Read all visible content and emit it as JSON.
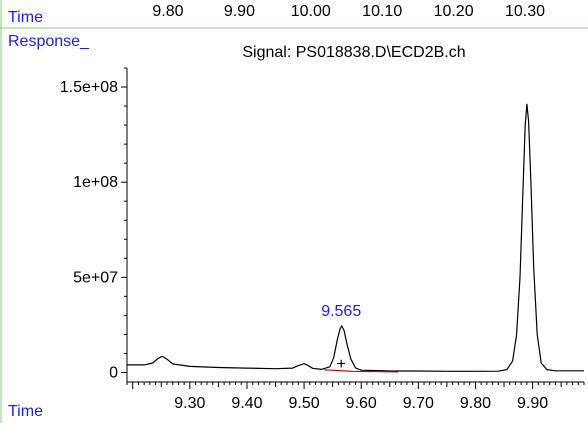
{
  "top_axis": {
    "label": "Time",
    "ticks": [
      "9.80",
      "9.90",
      "10.00",
      "10.10",
      "10.20",
      "10.30"
    ]
  },
  "chart_data": {
    "type": "line",
    "title": "Signal: PS018838.D\\ECD2B.ch",
    "ylabel": "Response_",
    "xlabel": "Time",
    "xlim": [
      9.19,
      9.99
    ],
    "ylim": [
      -5000000.0,
      160000000.0
    ],
    "x_ticks": [
      "9.30",
      "9.40",
      "9.50",
      "9.60",
      "9.70",
      "9.80",
      "9.90"
    ],
    "y_ticks": [
      {
        "value": 0,
        "label": "0"
      },
      {
        "value": 50000000.0,
        "label": "5e+07"
      },
      {
        "value": 100000000.0,
        "label": "1e+08"
      },
      {
        "value": 150000000.0,
        "label": "1.5e+08"
      }
    ],
    "grid": false,
    "series": [
      {
        "color": "#000000",
        "points": [
          [
            9.19,
            4000000.0
          ],
          [
            9.22,
            4000000.0
          ],
          [
            9.235,
            5000000.0
          ],
          [
            9.245,
            7500000.0
          ],
          [
            9.252,
            8500000.0
          ],
          [
            9.26,
            7000000.0
          ],
          [
            9.27,
            4500000.0
          ],
          [
            9.3,
            3200000.0
          ],
          [
            9.35,
            2600000.0
          ],
          [
            9.4,
            2300000.0
          ],
          [
            9.45,
            2000000.0
          ],
          [
            9.48,
            2300000.0
          ],
          [
            9.49,
            3600000.0
          ],
          [
            9.5,
            4600000.0
          ],
          [
            9.505,
            4000000.0
          ],
          [
            9.515,
            2200000.0
          ],
          [
            9.53,
            1600000.0
          ],
          [
            9.545,
            3000000.0
          ],
          [
            9.552,
            8000000.0
          ],
          [
            9.558,
            17000000.0
          ],
          [
            9.563,
            23000000.0
          ],
          [
            9.566,
            24500000.0
          ],
          [
            9.57,
            22000000.0
          ],
          [
            9.575,
            15000000.0
          ],
          [
            9.582,
            7000000.0
          ],
          [
            9.59,
            2400000.0
          ],
          [
            9.6,
            1200000.0
          ],
          [
            9.65,
            800000.0
          ],
          [
            9.7,
            800000.0
          ],
          [
            9.75,
            600000.0
          ],
          [
            9.8,
            600000.0
          ],
          [
            9.84,
            700000.0
          ],
          [
            9.855,
            1500000.0
          ],
          [
            9.865,
            6000000.0
          ],
          [
            9.872,
            20000000.0
          ],
          [
            9.878,
            50000000.0
          ],
          [
            9.883,
            95000000.0
          ],
          [
            9.887,
            130000000.0
          ],
          [
            9.89,
            141000000.0
          ],
          [
            9.893,
            132000000.0
          ],
          [
            9.897,
            100000000.0
          ],
          [
            9.902,
            55000000.0
          ],
          [
            9.908,
            20000000.0
          ],
          [
            9.915,
            5000000.0
          ],
          [
            9.925,
            1500000.0
          ],
          [
            9.94,
            900000.0
          ],
          [
            9.99,
            900000.0
          ]
        ]
      }
    ],
    "baseline": {
      "color": "#cc0000",
      "points": [
        [
          9.535,
          1400000.0
        ],
        [
          9.585,
          600000.0
        ],
        [
          9.665,
          300000.0
        ]
      ]
    },
    "annotations": [
      {
        "text": "9.565",
        "x": 9.565,
        "y": 24500000.0,
        "color": "#1a1aff"
      },
      {
        "text": "+",
        "x": 9.565,
        "y": 5000000.0,
        "color": "#000000"
      }
    ]
  }
}
